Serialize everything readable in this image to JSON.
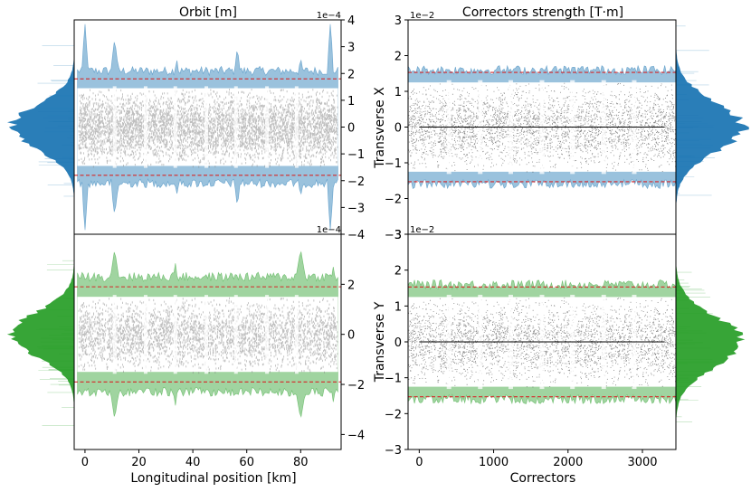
{
  "chart_data": {
    "type": "multi-panel band/scatter",
    "titles": {
      "orbit": "Orbit [m]",
      "correctors": "Correctors strength [T·m]"
    },
    "row_labels": [
      "Transverse X",
      "Transverse Y"
    ],
    "xlabels": {
      "orbit": "Longitudinal position [km]",
      "correctors": "Correctors"
    },
    "orbit_panel": {
      "xlim": [
        -4,
        95
      ],
      "xticks": [
        0,
        20,
        40,
        60,
        80
      ],
      "xtick_labels": [
        "0",
        "20",
        "40",
        "60",
        "80"
      ],
      "scale_label": "1e−4",
      "x_row": {
        "ylim": [
          -4,
          4
        ],
        "yticks": [
          -4,
          -3,
          -2,
          -1,
          0,
          1,
          2,
          3,
          4
        ],
        "ytick_labels": [
          "−4",
          "−3",
          "−2",
          "−1",
          "0",
          "1",
          "2",
          "3",
          "4"
        ],
        "threshold": 1.8,
        "envelope_typical": 2.1,
        "core_typical": 1.45,
        "color": "#1f77b4"
      },
      "y_row": {
        "ylim": [
          -4.6,
          4.0
        ],
        "yticks": [
          -4,
          -2,
          0,
          2
        ],
        "ytick_labels": [
          "−4",
          "−2",
          "0",
          "2"
        ],
        "threshold": 1.9,
        "envelope_typical": 2.3,
        "core_typical": 1.5,
        "color": "#2ca02c"
      },
      "gap_positions_km": [
        11,
        22.5,
        33.5,
        45,
        56,
        67.5,
        78.5
      ]
    },
    "corrector_panel": {
      "xlim": [
        -150,
        3450
      ],
      "xticks": [
        0,
        1000,
        2000,
        3000
      ],
      "xtick_labels": [
        "0",
        "1000",
        "2000",
        "3000"
      ],
      "scale_label": "1e−2",
      "x_row": {
        "ylim": [
          -3,
          3
        ],
        "yticks": [
          -3,
          -2,
          -1,
          0,
          1,
          2,
          3
        ],
        "ytick_labels": [
          "−3",
          "−2",
          "−1",
          "0",
          "1",
          "2",
          "3"
        ],
        "threshold": 1.53,
        "envelope_typical": 1.6,
        "core_typical": 1.25,
        "color": "#1f77b4"
      },
      "y_row": {
        "ylim": [
          -3,
          3
        ],
        "yticks": [
          -3,
          -2,
          -1,
          0,
          1,
          2,
          3
        ],
        "ytick_labels": [
          "−3",
          "−2",
          "−1",
          "0",
          "1",
          "2",
          "3"
        ],
        "threshold": 1.53,
        "envelope_typical": 1.6,
        "core_typical": 1.25,
        "color": "#2ca02c"
      },
      "gap_positions": [
        400,
        820,
        1230,
        1650,
        2060,
        2480,
        2890
      ]
    },
    "colors": {
      "core": "#808080",
      "corrector_dots": "#222222",
      "threshold": "#d62728",
      "zero_line": "#000000"
    }
  }
}
